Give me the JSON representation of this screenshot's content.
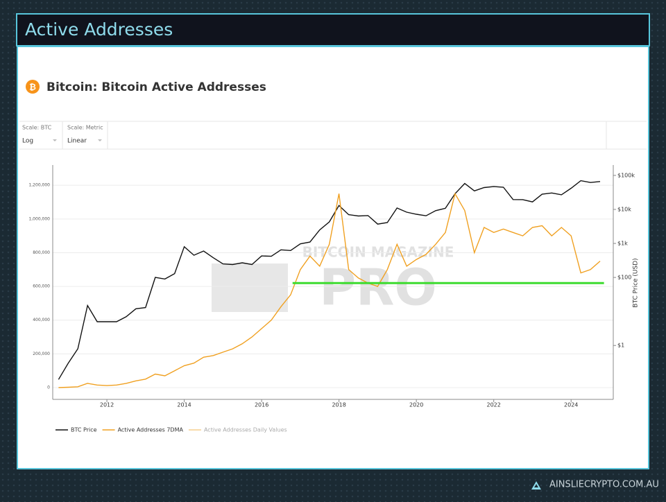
{
  "header": {
    "title": "Active Addresses"
  },
  "controls": [
    {
      "label": "Scale: BTC",
      "value": "Log"
    },
    {
      "label": "Scale: Metric",
      "value": "Linear"
    }
  ],
  "watermark": [
    "BITCOIN MAGAZINE",
    "PRO"
  ],
  "footer": {
    "brand": "AINSLIECRYPTO.COM.AU"
  },
  "chart_data": {
    "type": "line",
    "title": "Bitcoin: Bitcoin Active Addresses",
    "y2_label": "BTC Price (USD)",
    "x": [
      2010.75,
      2011,
      2011.25,
      2011.5,
      2011.75,
      2012,
      2012.25,
      2012.5,
      2012.75,
      2013,
      2013.25,
      2013.5,
      2013.75,
      2014,
      2014.25,
      2014.5,
      2014.75,
      2015,
      2015.25,
      2015.5,
      2015.75,
      2016,
      2016.25,
      2016.5,
      2016.75,
      2017,
      2017.25,
      2017.5,
      2017.75,
      2018,
      2018.25,
      2018.5,
      2018.75,
      2019,
      2019.25,
      2019.5,
      2019.75,
      2020,
      2020.25,
      2020.5,
      2020.75,
      2021,
      2021.25,
      2021.5,
      2021.75,
      2022,
      2022.25,
      2022.5,
      2022.75,
      2023,
      2023.25,
      2023.5,
      2023.75,
      2024,
      2024.25,
      2024.5,
      2024.75
    ],
    "xlim": [
      2010.6,
      2025.09
    ],
    "xticks": [
      2012,
      2014,
      2016,
      2018,
      2020,
      2022,
      2024
    ],
    "ylim": [
      -70000,
      1320000
    ],
    "yticks": [
      0,
      {
        "value": 200000,
        "label": "200,000"
      },
      {
        "value": 400000,
        "label": "400,000"
      },
      {
        "value": 600000,
        "label": "600,000"
      },
      {
        "value": 800000,
        "label": "800,000"
      },
      {
        "value": 1000000,
        "label": "1,000,000"
      },
      {
        "value": 1200000,
        "label": "1,200,000"
      }
    ],
    "y2lim": [
      0.026,
      202000
    ],
    "y2_log": true,
    "y2ticks": [
      {
        "value": 1,
        "label": "$1"
      },
      {
        "value": 100,
        "label": "$100"
      },
      {
        "value": 1000,
        "label": "$1k"
      },
      {
        "value": 10000,
        "label": "$10k"
      },
      {
        "value": 100000,
        "label": "$100k"
      }
    ],
    "grid": true,
    "series": [
      {
        "name": "BTC Price",
        "color": "#111111",
        "axis": "y2",
        "values": [
          0.1,
          0.3,
          0.8,
          15,
          5,
          5,
          5,
          7,
          12,
          13,
          100,
          90,
          130,
          800,
          450,
          600,
          380,
          250,
          240,
          270,
          240,
          430,
          420,
          650,
          620,
          970,
          1100,
          2500,
          4300,
          13000,
          7000,
          6400,
          6600,
          3700,
          4100,
          11000,
          8300,
          7200,
          6500,
          9200,
          10800,
          29000,
          58000,
          35000,
          44000,
          47000,
          45000,
          19500,
          19400,
          16600,
          28000,
          30500,
          27000,
          42000,
          70000,
          62000,
          66000
        ]
      },
      {
        "name": "Active Addresses 7DMA",
        "color": "#f0a020",
        "values": [
          0,
          2000,
          5000,
          25000,
          15000,
          12000,
          15000,
          25000,
          40000,
          50000,
          80000,
          70000,
          100000,
          130000,
          145000,
          180000,
          190000,
          210000,
          230000,
          260000,
          300000,
          350000,
          400000,
          480000,
          550000,
          700000,
          780000,
          720000,
          850000,
          1150000,
          700000,
          650000,
          620000,
          600000,
          700000,
          850000,
          720000,
          760000,
          790000,
          850000,
          920000,
          1150000,
          1050000,
          800000,
          950000,
          920000,
          940000,
          920000,
          900000,
          950000,
          960000,
          900000,
          950000,
          900000,
          680000,
          700000,
          750000
        ]
      }
    ],
    "hidden_series": [
      {
        "name": "Active Addresses Daily Values",
        "color": "#f5cf8e"
      }
    ],
    "reference_line": {
      "y": 620000,
      "x": [
        2016.8,
        2024.85
      ],
      "color": "#3ddc2f"
    }
  }
}
